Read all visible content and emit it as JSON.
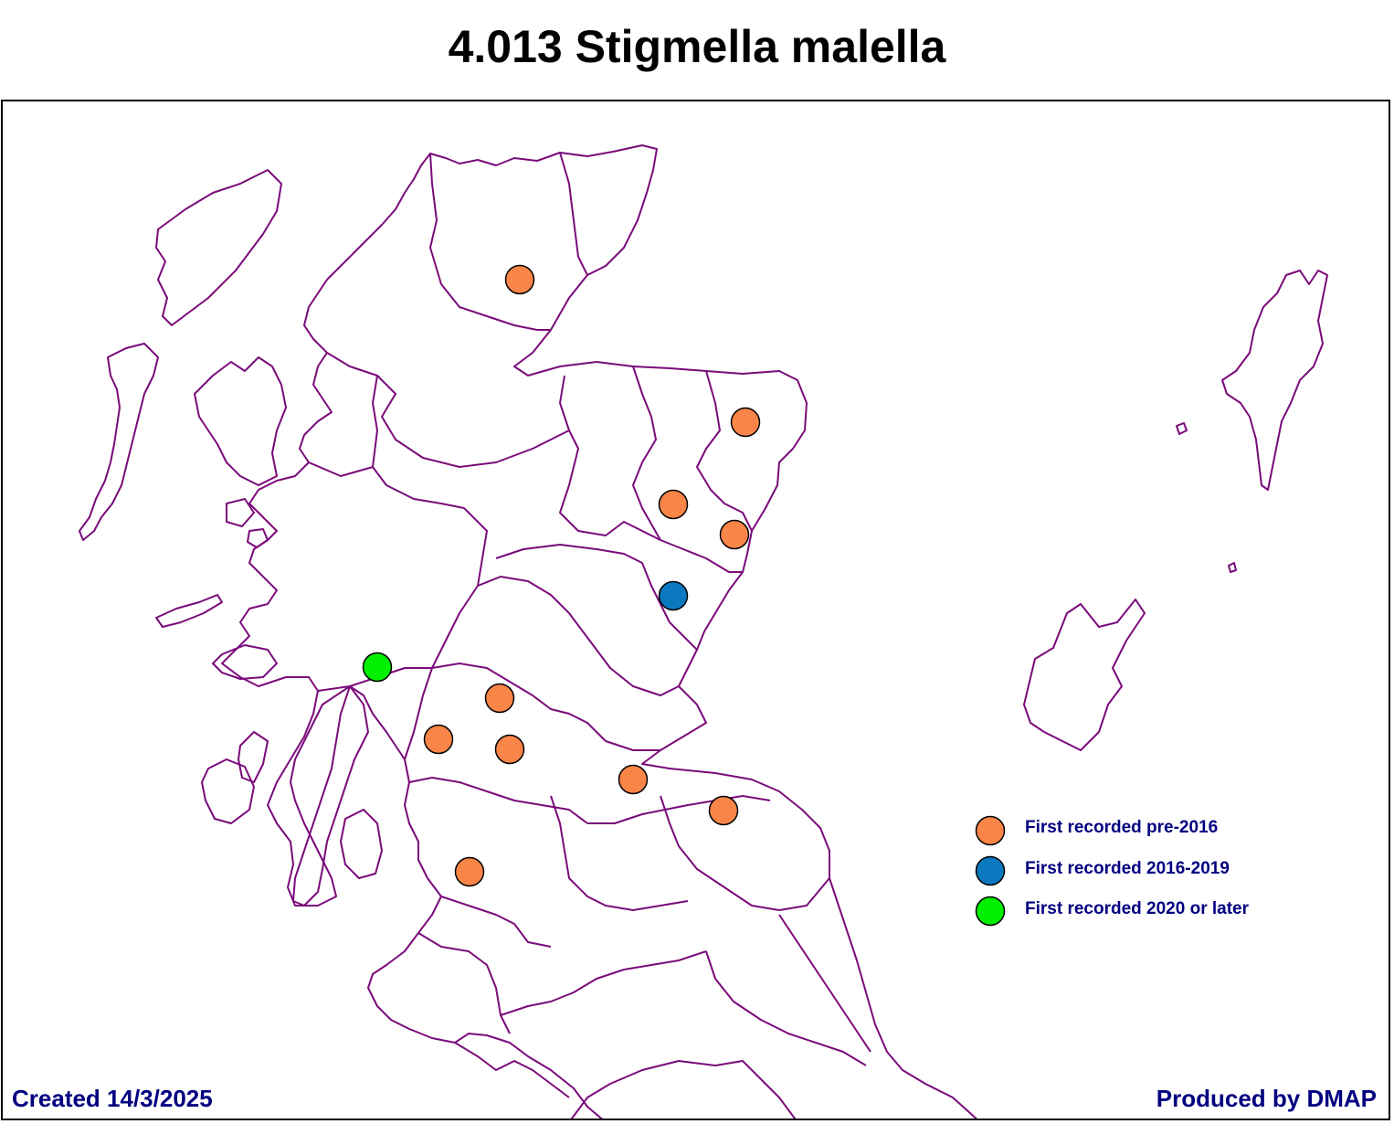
{
  "title": "4.013 Stigmella malella",
  "legend": [
    {
      "label": "First recorded pre-2016",
      "color": "#f98548"
    },
    {
      "label": "First recorded 2016-2019",
      "color": "#0a79c0"
    },
    {
      "label": "First recorded 2020 or later",
      "color": "#00f000"
    }
  ],
  "footer": {
    "created": "Created 14/3/2025",
    "produced": "Produced by DMAP"
  },
  "outline_color": "#7a0a7a",
  "records": [
    {
      "category": 0
    },
    {
      "category": 0
    },
    {
      "category": 0
    },
    {
      "category": 0
    },
    {
      "category": 1
    },
    {
      "category": 2
    },
    {
      "category": 0
    },
    {
      "category": 0
    },
    {
      "category": 0
    },
    {
      "category": 0
    },
    {
      "category": 0
    },
    {
      "category": 0
    }
  ]
}
